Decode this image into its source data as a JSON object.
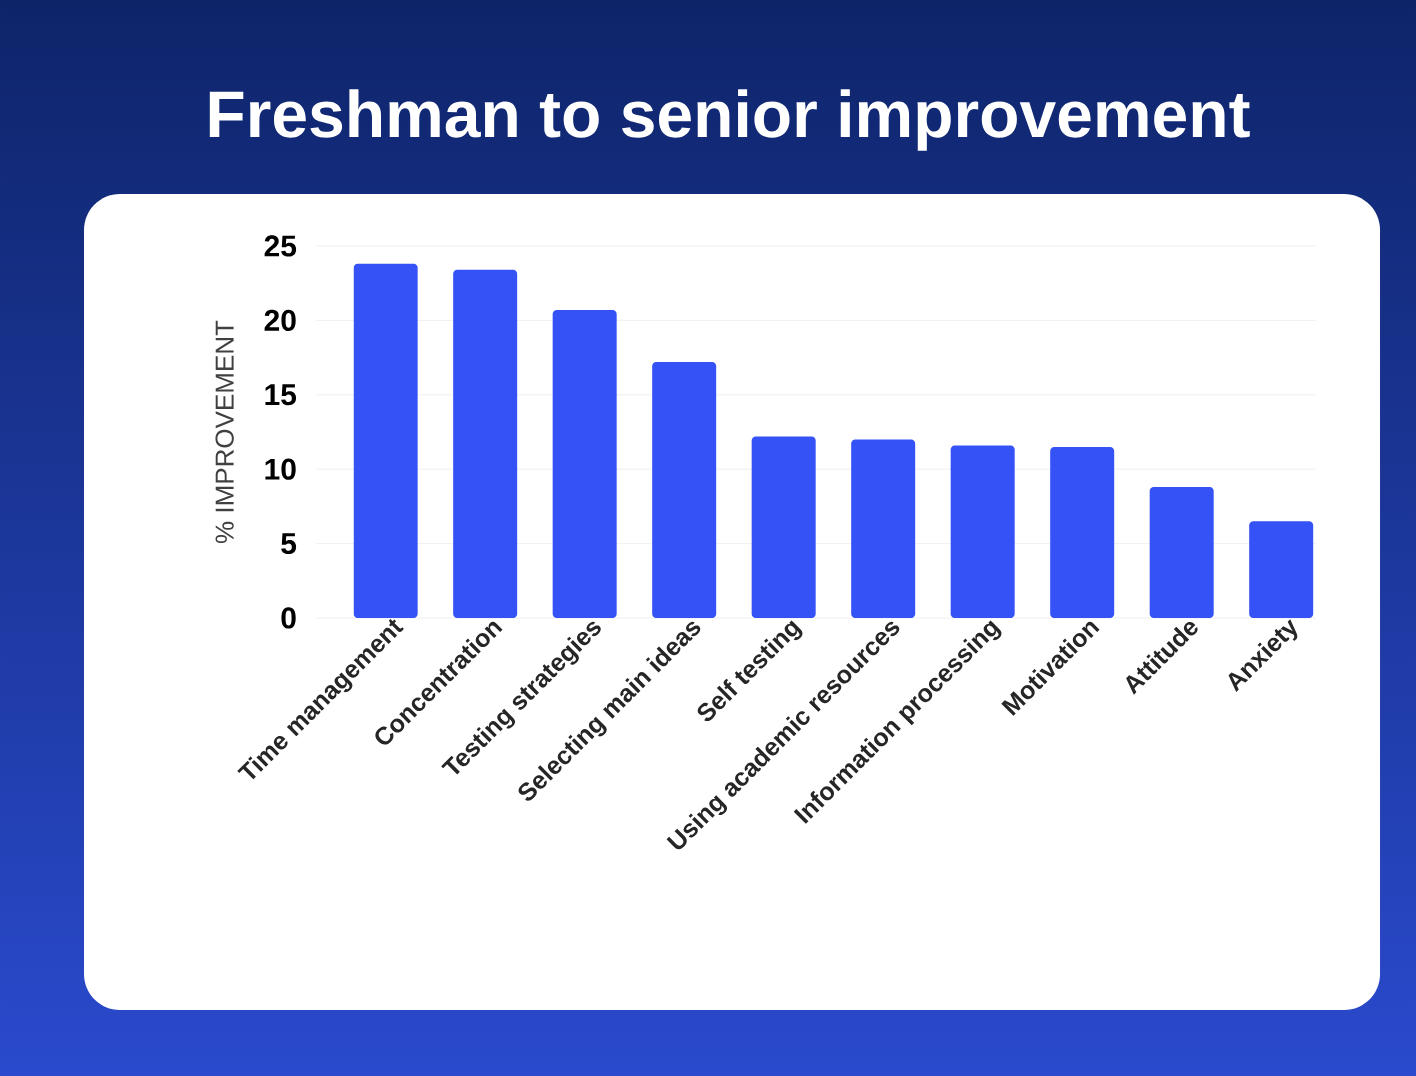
{
  "chart_data": {
    "type": "bar",
    "title": "Freshman to senior improvement",
    "ylabel": "% IMPROVEMENT",
    "categories": [
      "Time management",
      "Concentration",
      "Testing strategies",
      "Selecting main ideas",
      "Self testing",
      "Using academic resources",
      "Information processing",
      "Motivation",
      "Attitude",
      "Anxiety"
    ],
    "values": [
      23.8,
      23.4,
      20.7,
      17.2,
      12.2,
      12.0,
      11.6,
      11.5,
      8.8,
      6.5
    ],
    "color": "#3452f5",
    "ylim": [
      0,
      25
    ],
    "yticks": [
      0,
      5,
      10,
      15,
      20,
      25
    ],
    "grid": "y"
  }
}
